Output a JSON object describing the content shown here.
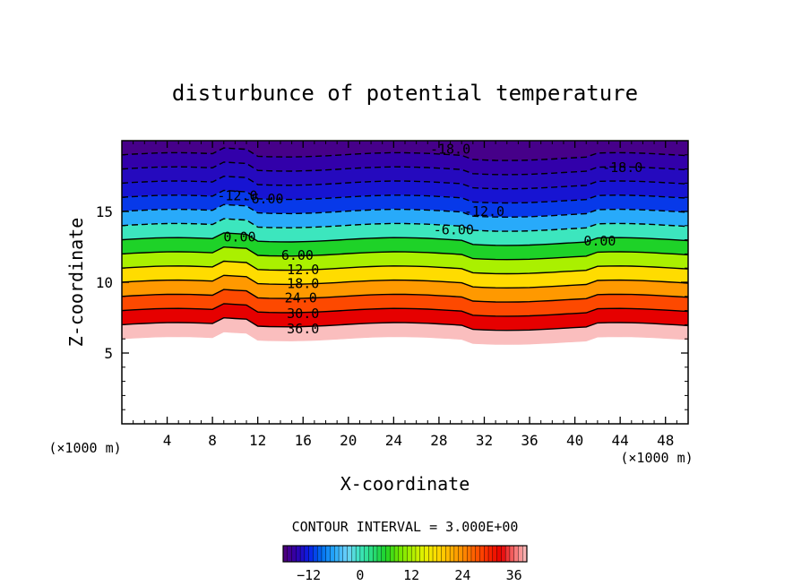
{
  "chart_data": {
    "type": "heatmap",
    "title": "disturbunce of potential temperature",
    "xlabel": "X-coordinate",
    "ylabel": "Z-coordinate",
    "x_unit_left": "(×1000 m)",
    "x_unit_right": "(×1000 m)",
    "xlim": [
      0,
      50
    ],
    "ylim": [
      0,
      20
    ],
    "x_ticks": [
      4,
      8,
      12,
      16,
      20,
      24,
      28,
      32,
      36,
      40,
      44,
      48
    ],
    "y_ticks": [
      5,
      10,
      15
    ],
    "contour_interval_text": "CONTOUR INTERVAL = 3.000E+00",
    "colorbar": {
      "range": [
        -18,
        39
      ],
      "ticks": [
        -12,
        0,
        12,
        24,
        36
      ]
    },
    "contour_labels": [
      {
        "text": "-18.0",
        "x": 29.0,
        "y": 19.4
      },
      {
        "text": "-18.0",
        "x": 44.2,
        "y": 18.1
      },
      {
        "text": "-12.0",
        "x": 10.2,
        "y": 16.1
      },
      {
        "text": "-6.00",
        "x": 12.5,
        "y": 15.9
      },
      {
        "text": "-12.0",
        "x": 32.0,
        "y": 15.0
      },
      {
        "text": "-6.00",
        "x": 29.3,
        "y": 13.7
      },
      {
        "text": "0.00",
        "x": 10.4,
        "y": 13.2
      },
      {
        "text": "0.00",
        "x": 42.2,
        "y": 12.9
      },
      {
        "text": "6.00",
        "x": 15.5,
        "y": 11.9
      },
      {
        "text": "12.0",
        "x": 16.0,
        "y": 10.9
      },
      {
        "text": "18.0",
        "x": 16.0,
        "y": 9.9
      },
      {
        "text": "24.0",
        "x": 15.8,
        "y": 8.9
      },
      {
        "text": "30.0",
        "x": 16.0,
        "y": 7.8
      },
      {
        "text": "36.0",
        "x": 16.0,
        "y": 6.7
      }
    ],
    "bands_by_height": [
      {
        "z": 6.0,
        "value": 39
      },
      {
        "z": 7.0,
        "value": 33
      },
      {
        "z": 8.0,
        "value": 28
      },
      {
        "z": 9.0,
        "value": 23
      },
      {
        "z": 10.0,
        "value": 18
      },
      {
        "z": 11.0,
        "value": 12
      },
      {
        "z": 12.0,
        "value": 6
      },
      {
        "z": 13.0,
        "value": 0
      },
      {
        "z": 14.0,
        "value": -6
      },
      {
        "z": 15.0,
        "value": -11
      },
      {
        "z": 16.0,
        "value": -13
      },
      {
        "z": 17.0,
        "value": -14
      },
      {
        "z": 18.0,
        "value": -15
      },
      {
        "z": 19.0,
        "value": -17
      },
      {
        "z": 20.0,
        "value": -18
      }
    ],
    "surface_z": 6.0
  }
}
